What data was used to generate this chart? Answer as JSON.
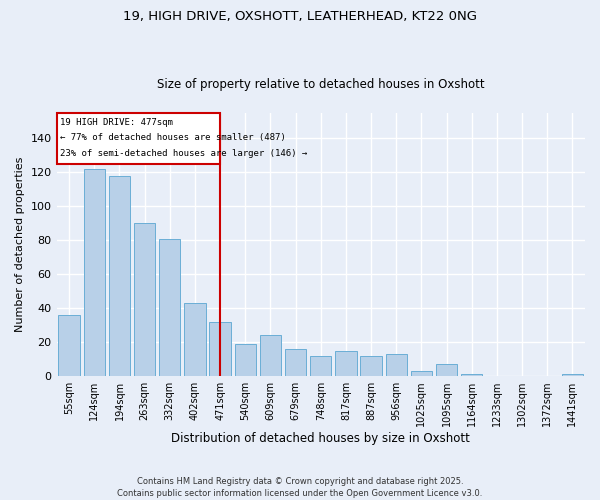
{
  "title1": "19, HIGH DRIVE, OXSHOTT, LEATHERHEAD, KT22 0NG",
  "title2": "Size of property relative to detached houses in Oxshott",
  "xlabel": "Distribution of detached houses by size in Oxshott",
  "ylabel": "Number of detached properties",
  "categories": [
    "55sqm",
    "124sqm",
    "194sqm",
    "263sqm",
    "332sqm",
    "402sqm",
    "471sqm",
    "540sqm",
    "609sqm",
    "679sqm",
    "748sqm",
    "817sqm",
    "887sqm",
    "956sqm",
    "1025sqm",
    "1095sqm",
    "1164sqm",
    "1233sqm",
    "1302sqm",
    "1372sqm",
    "1441sqm"
  ],
  "values": [
    36,
    122,
    118,
    90,
    81,
    43,
    32,
    19,
    24,
    16,
    12,
    15,
    12,
    13,
    3,
    7,
    1,
    0,
    0,
    0,
    1
  ],
  "bar_color": "#b8d0e8",
  "bar_edge_color": "#6aaed6",
  "background_color": "#e8eef8",
  "grid_color": "#ffffff",
  "property_label": "19 HIGH DRIVE: 477sqm",
  "annotation_line1": "← 77% of detached houses are smaller (487)",
  "annotation_line2": "23% of semi-detached houses are larger (146) →",
  "annotation_box_color": "#ffffff",
  "annotation_box_edge": "#cc0000",
  "vline_color": "#cc0000",
  "ylim": [
    0,
    155
  ],
  "yticks": [
    0,
    20,
    40,
    60,
    80,
    100,
    120,
    140
  ],
  "footer": "Contains HM Land Registry data © Crown copyright and database right 2025.\nContains public sector information licensed under the Open Government Licence v3.0."
}
